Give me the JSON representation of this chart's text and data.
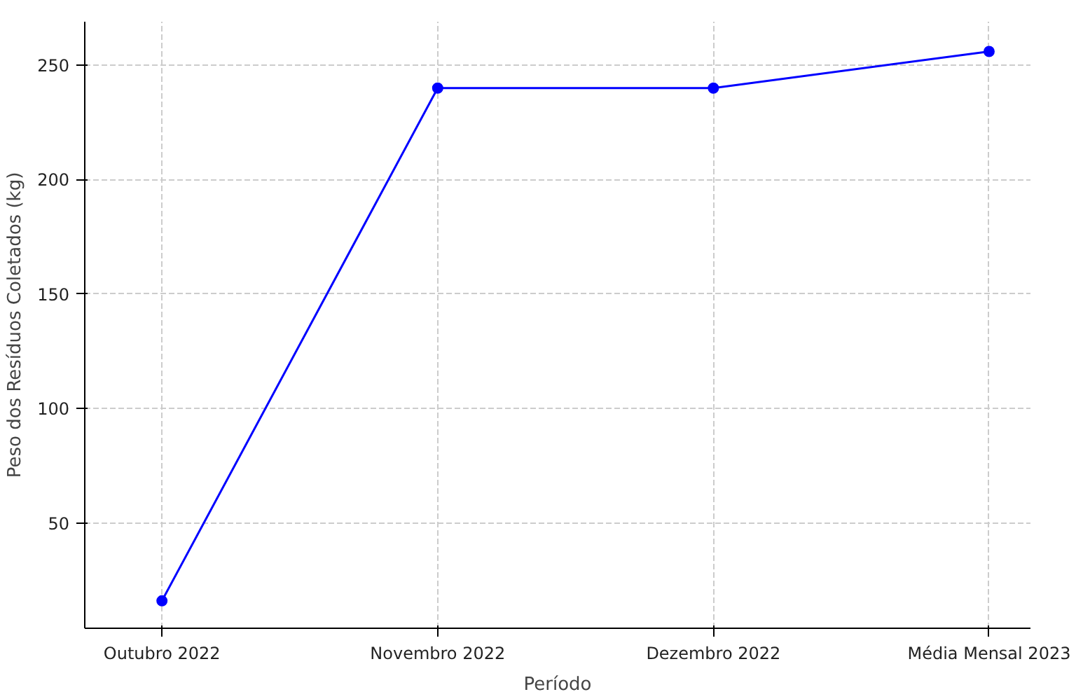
{
  "chart_data": {
    "type": "line",
    "xlabel": "Período",
    "ylabel": "Peso dos Resíduos Coletados (kg)",
    "categories": [
      "Outubro 2022",
      "Novembro 2022",
      "Dezembro 2022",
      "Média Mensal 2023"
    ],
    "series": [
      {
        "color": "#0000ff",
        "values": [
          16,
          240,
          240,
          256
        ]
      }
    ],
    "ylim": [
      4,
      269
    ],
    "yticks": [
      50,
      100,
      150,
      200,
      250
    ],
    "grid": true,
    "marker": "circle",
    "line_style": "solid"
  }
}
